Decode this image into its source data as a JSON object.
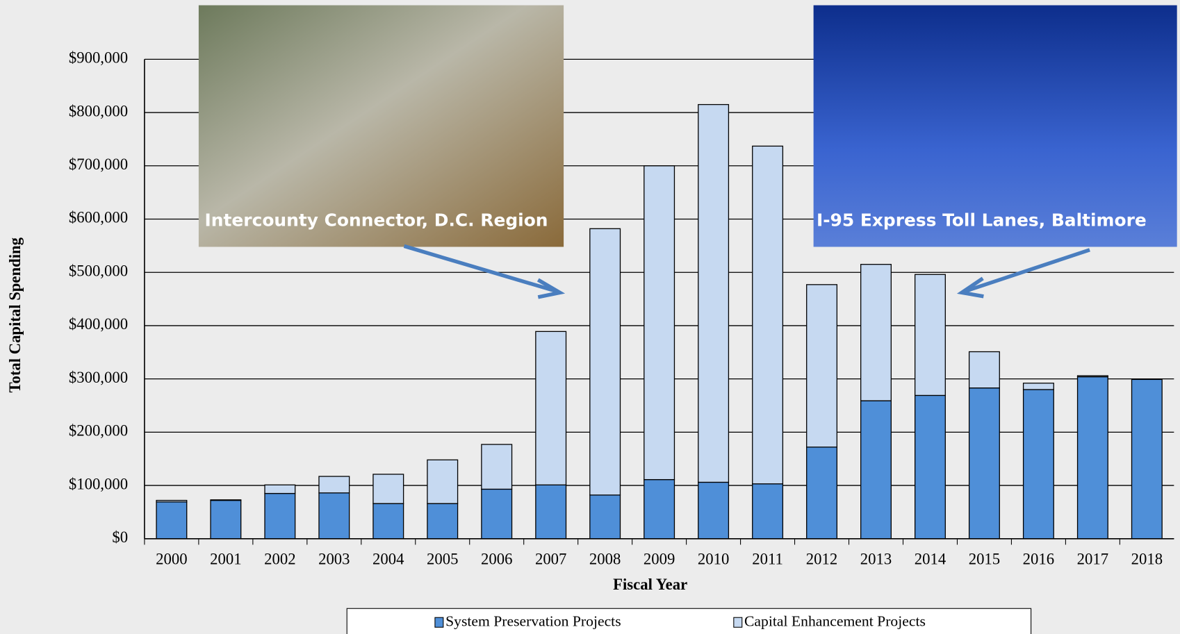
{
  "chart_data": {
    "type": "bar",
    "stacked": true,
    "y_label": "Total Capital Spending",
    "x_label": "Fiscal Year",
    "categories": [
      "2000",
      "2001",
      "2002",
      "2003",
      "2004",
      "2005",
      "2006",
      "2007",
      "2008",
      "2009",
      "2010",
      "2011",
      "2012",
      "2013",
      "2014",
      "2015",
      "2016",
      "2017",
      "2018"
    ],
    "series": [
      {
        "name": "System Preservation Projects",
        "color": "#4f8fd8",
        "values": [
          69000,
          72000,
          85000,
          86000,
          66000,
          66000,
          93000,
          101000,
          82000,
          111000,
          106000,
          103000,
          172000,
          259000,
          269000,
          283000,
          280000,
          304000,
          299000
        ]
      },
      {
        "name": "Capital Enhancement Projects",
        "color": "#c6d9f1",
        "values": [
          3000,
          1000,
          16000,
          31000,
          55000,
          82000,
          84000,
          288000,
          500000,
          589000,
          709000,
          634000,
          305000,
          256000,
          227000,
          68000,
          12000,
          2000,
          0
        ]
      }
    ],
    "ylim": [
      0,
      900000
    ],
    "yticks": [
      {
        "value": 0,
        "label": "$0"
      },
      {
        "value": 100000,
        "label": "$100,000"
      },
      {
        "value": 200000,
        "label": "$200,000"
      },
      {
        "value": 300000,
        "label": "$300,000"
      },
      {
        "value": 400000,
        "label": "$400,000"
      },
      {
        "value": 500000,
        "label": "$500,000"
      },
      {
        "value": 600000,
        "label": "$600,000"
      },
      {
        "value": 700000,
        "label": "$700,000"
      },
      {
        "value": 800000,
        "label": "$800,000"
      },
      {
        "value": 900000,
        "label": "$900,000"
      }
    ],
    "grid": true,
    "annotations": [
      "Intercounty Connector, D.C. Region",
      "I-95 Express Toll Lanes, Baltimore"
    ]
  }
}
